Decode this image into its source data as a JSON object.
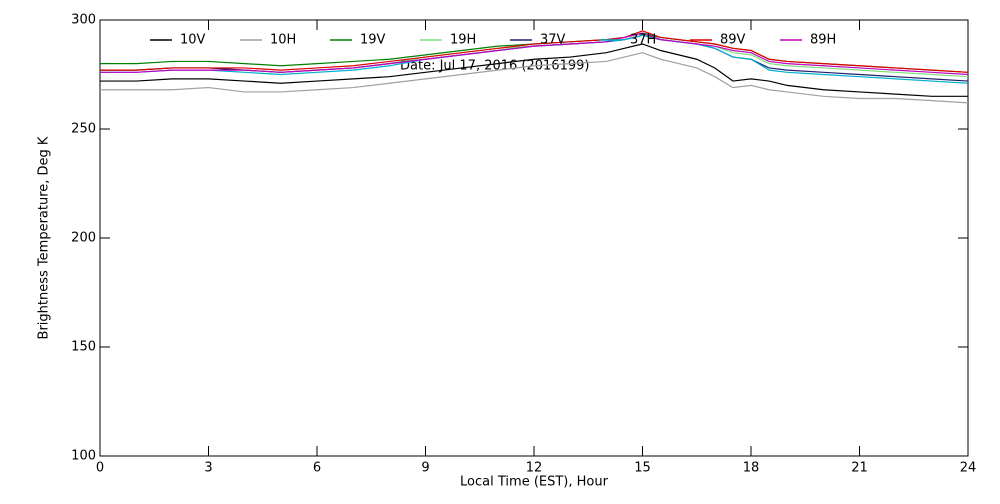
{
  "chart_data": {
    "type": "line",
    "annotation": "Date: Jul 17, 2016 (2016199)",
    "x_label": "Local Time (EST), Hour",
    "y_label": "Brightness Temperature, Deg K",
    "x": [
      0,
      1,
      2,
      3,
      4,
      5,
      6,
      7,
      8,
      9,
      10,
      11,
      12,
      13,
      14,
      14.5,
      15,
      15.5,
      16,
      16.5,
      17,
      17.5,
      18,
      18.5,
      19,
      20,
      21,
      22,
      23,
      24
    ],
    "series": [
      {
        "name": "10V",
        "color": "#000000",
        "values": [
          272,
          272,
          273,
          273,
          272,
          271,
          272,
          273,
          274,
          276,
          278,
          280,
          282,
          283,
          285,
          287,
          289,
          286,
          284,
          282,
          278,
          272,
          273,
          272,
          270,
          268,
          267,
          266,
          265,
          265
        ]
      },
      {
        "name": "10H",
        "color": "#a0a0a0",
        "values": [
          268,
          268,
          268,
          269,
          267,
          267,
          268,
          269,
          271,
          273,
          275,
          277,
          279,
          280,
          281,
          283,
          285,
          282,
          280,
          278,
          274,
          269,
          270,
          268,
          267,
          265,
          264,
          264,
          263,
          262
        ]
      },
      {
        "name": "19V",
        "color": "#008000",
        "values": [
          280,
          280,
          281,
          281,
          280,
          279,
          280,
          281,
          282,
          284,
          286,
          288,
          289,
          290,
          291,
          292,
          294,
          292,
          291,
          290,
          289,
          287,
          286,
          282,
          281,
          280,
          279,
          278,
          277,
          276
        ]
      },
      {
        "name": "19H",
        "color": "#7fe07f",
        "values": [
          277,
          277,
          278,
          278,
          277,
          276,
          277,
          278,
          280,
          283,
          285,
          287,
          288,
          289,
          290,
          291,
          293,
          291,
          290,
          289,
          288,
          285,
          284,
          280,
          279,
          278,
          277,
          276,
          275,
          274
        ]
      },
      {
        "name": "37V",
        "color": "#20206a",
        "values": [
          277,
          277,
          278,
          278,
          277,
          276,
          277,
          278,
          280,
          282,
          284,
          286,
          288,
          289,
          290,
          291,
          293,
          291,
          290,
          289,
          287,
          283,
          282,
          278,
          277,
          276,
          275,
          274,
          273,
          272
        ]
      },
      {
        "name": "37H",
        "color": "#00b0d0",
        "values": [
          276,
          276,
          277,
          277,
          276,
          275,
          276,
          277,
          279,
          282,
          284,
          286,
          288,
          289,
          290,
          291,
          293,
          291,
          290,
          289,
          287,
          283,
          282,
          277,
          276,
          275,
          274,
          273,
          272,
          271
        ]
      },
      {
        "name": "89V",
        "color": "#e00000",
        "values": [
          277,
          277,
          278,
          278,
          278,
          277,
          278,
          279,
          281,
          283,
          285,
          287,
          289,
          290,
          291,
          292,
          295,
          292,
          291,
          290,
          289,
          287,
          286,
          282,
          281,
          280,
          279,
          278,
          277,
          276
        ]
      },
      {
        "name": "89H",
        "color": "#c000c0",
        "values": [
          276,
          276,
          277,
          277,
          277,
          276,
          277,
          278,
          280,
          282,
          284,
          286,
          288,
          289,
          290,
          292,
          294,
          291,
          290,
          289,
          288,
          286,
          285,
          281,
          280,
          279,
          278,
          277,
          276,
          275
        ]
      }
    ],
    "xlim": [
      0,
      24
    ],
    "xticks": [
      0,
      3,
      6,
      9,
      12,
      15,
      18,
      21,
      24
    ],
    "ylim": [
      100,
      300
    ],
    "yticks": [
      100,
      150,
      200,
      250,
      300
    ],
    "grid": false
  }
}
